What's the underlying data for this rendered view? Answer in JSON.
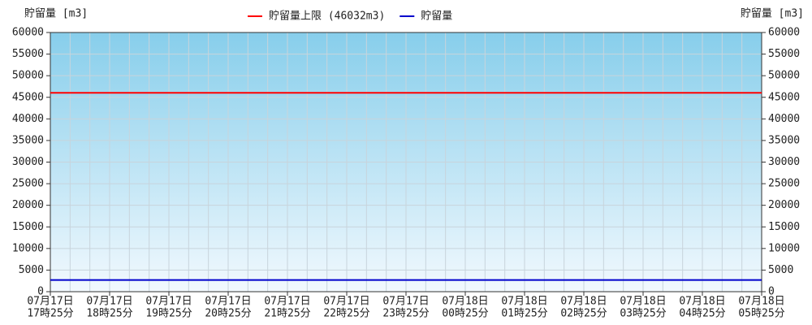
{
  "chart_data": {
    "type": "line",
    "y_label": "貯留量 [m3]",
    "y2_label": "貯留量 [m3]",
    "categories": [
      [
        "07月17日",
        "17時25分"
      ],
      [
        "07月17日",
        "18時25分"
      ],
      [
        "07月17日",
        "19時25分"
      ],
      [
        "07月17日",
        "20時25分"
      ],
      [
        "07月17日",
        "21時25分"
      ],
      [
        "07月17日",
        "22時25分"
      ],
      [
        "07月17日",
        "23時25分"
      ],
      [
        "07月18日",
        "00時25分"
      ],
      [
        "07月18日",
        "01時25分"
      ],
      [
        "07月18日",
        "02時25分"
      ],
      [
        "07月18日",
        "03時25分"
      ],
      [
        "07月18日",
        "04時25分"
      ],
      [
        "07月18日",
        "05時25分"
      ]
    ],
    "series": [
      {
        "name": "貯留量上限 (46032m3)",
        "color": "#ff0000",
        "values": [
          46032,
          46032,
          46032,
          46032,
          46032,
          46032,
          46032,
          46032,
          46032,
          46032,
          46032,
          46032,
          46032
        ]
      },
      {
        "name": "貯留量",
        "color": "#0000cc",
        "values": [
          2700,
          2700,
          2700,
          2700,
          2700,
          2700,
          2700,
          2700,
          2700,
          2700,
          2700,
          2700,
          2700
        ]
      }
    ],
    "ylim": [
      0,
      60000
    ],
    "yticks": [
      0,
      5000,
      10000,
      15000,
      20000,
      25000,
      30000,
      35000,
      40000,
      45000,
      50000,
      55000,
      60000
    ],
    "y2lim": [
      0,
      60000
    ],
    "y2ticks": [
      0,
      5000,
      10000,
      15000,
      20000,
      25000,
      30000,
      35000,
      40000,
      45000,
      50000,
      55000,
      60000
    ],
    "grid": true
  }
}
